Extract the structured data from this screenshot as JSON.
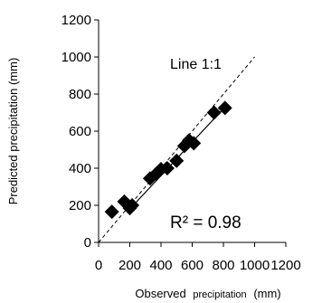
{
  "chart_data": {
    "type": "scatter",
    "xlabel_main": "Observed",
    "xlabel_small": "precipitation",
    "xlabel_unit": "(mm)",
    "ylabel": "Predicted precipitation (mm)",
    "xlim": [
      0,
      1200
    ],
    "ylim": [
      0,
      1200
    ],
    "xticks": [
      "0",
      "200",
      "400",
      "600",
      "800",
      "1000",
      "1200"
    ],
    "yticks": [
      "0",
      "200",
      "400",
      "600",
      "800",
      "1000",
      "1200"
    ],
    "grid": false,
    "annotations": {
      "line_label": "Line 1:1",
      "r2": "R² = 0.98"
    },
    "series": [
      {
        "marker": "diamond",
        "color": "#000000",
        "points": [
          [
            85,
            165
          ],
          [
            165,
            220
          ],
          [
            200,
            185
          ],
          [
            215,
            200
          ],
          [
            330,
            345
          ],
          [
            370,
            370
          ],
          [
            400,
            395
          ],
          [
            440,
            400
          ],
          [
            500,
            440
          ],
          [
            550,
            520
          ],
          [
            580,
            550
          ],
          [
            610,
            535
          ],
          [
            740,
            700
          ],
          [
            810,
            725
          ]
        ]
      }
    ],
    "reference_line": {
      "name": "Line 1:1",
      "style": "dashed"
    },
    "trendline": {
      "from": [
        200,
        180
      ],
      "to": [
        810,
        730
      ]
    }
  }
}
